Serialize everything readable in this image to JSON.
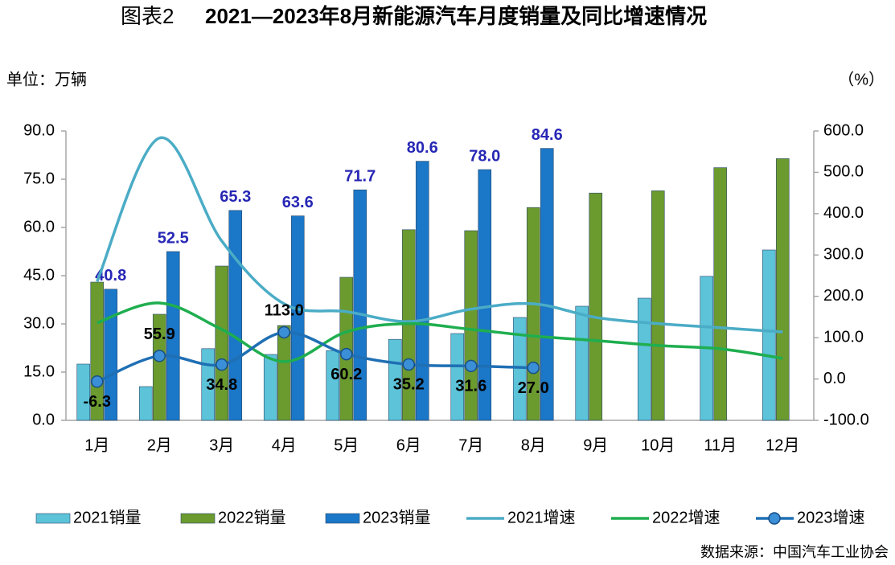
{
  "chart_data": {
    "type": "bar",
    "figure_label": "图表2",
    "title": "2021—2023年8月新能源汽车月度销量及同比增速情况",
    "y_label": "单位：万辆",
    "y2_label": "（%）",
    "source": "数据来源：中国汽车工业协会",
    "categories": [
      "1月",
      "2月",
      "3月",
      "4月",
      "5月",
      "6月",
      "7月",
      "8月",
      "9月",
      "10月",
      "11月",
      "12月"
    ],
    "ylim": [
      0,
      90
    ],
    "yticks": [
      {
        "value": 0,
        "label": "0.0"
      },
      {
        "value": 15,
        "label": "15.0"
      },
      {
        "value": 30,
        "label": "30.0"
      },
      {
        "value": 45,
        "label": "45.0"
      },
      {
        "value": 60,
        "label": "60.0"
      },
      {
        "value": 75,
        "label": "75.0"
      },
      {
        "value": 90,
        "label": "90.0"
      }
    ],
    "y2lim": [
      -100,
      600
    ],
    "y2ticks": [
      {
        "value": -100,
        "label": "-100.0"
      },
      {
        "value": 0,
        "label": "0.0"
      },
      {
        "value": 100,
        "label": "100.0"
      },
      {
        "value": 200,
        "label": "200.0"
      },
      {
        "value": 300,
        "label": "300.0"
      },
      {
        "value": 400,
        "label": "400.0"
      },
      {
        "value": 500,
        "label": "500.0"
      },
      {
        "value": 600,
        "label": "600.0"
      }
    ],
    "grid": false,
    "legend": "bottom",
    "series": [
      {
        "name": "2021销量",
        "type": "bar",
        "color": "#5cc3d9",
        "values": [
          17.5,
          10.5,
          22.3,
          20.5,
          21.7,
          25.2,
          27.0,
          32.0,
          35.5,
          38.0,
          44.8,
          53.0
        ]
      },
      {
        "name": "2022销量",
        "type": "bar",
        "color": "#6b9a2f",
        "values": [
          43.0,
          33.0,
          48.0,
          29.5,
          44.5,
          59.3,
          59.0,
          66.2,
          70.7,
          71.4,
          78.6,
          81.4
        ]
      },
      {
        "name": "2023销量",
        "type": "bar",
        "color": "#1b77c7",
        "values": [
          40.8,
          52.5,
          65.3,
          63.6,
          71.7,
          80.6,
          78.0,
          84.6,
          null,
          null,
          null,
          null
        ],
        "value_labels": [
          "40.8",
          "52.5",
          "65.3",
          "63.6",
          "71.7",
          "80.6",
          "78.0",
          "84.6",
          null,
          null,
          null,
          null
        ]
      },
      {
        "name": "2021增速",
        "type": "line",
        "axis": "y2",
        "color": "#4bacc6",
        "values": [
          236,
          583,
          334,
          182,
          163,
          139,
          169,
          182,
          149,
          134,
          124,
          114
        ]
      },
      {
        "name": "2022增速",
        "type": "line",
        "axis": "y2",
        "color": "#1fae4f",
        "values": [
          136,
          184,
          120,
          42,
          114,
          134,
          120,
          104,
          93,
          81,
          73,
          50
        ]
      },
      {
        "name": "2023增速",
        "type": "line",
        "axis": "y2",
        "color": "#1f6fb4",
        "marker": true,
        "values": [
          -6.3,
          55.9,
          34.8,
          113.0,
          60.2,
          35.2,
          31.6,
          27.0,
          null,
          null,
          null,
          null
        ],
        "value_labels": [
          "-6.3",
          "55.9",
          "34.8",
          "113.0",
          "60.2",
          "35.2",
          "31.6",
          "27.0",
          null,
          null,
          null,
          null
        ]
      }
    ]
  }
}
